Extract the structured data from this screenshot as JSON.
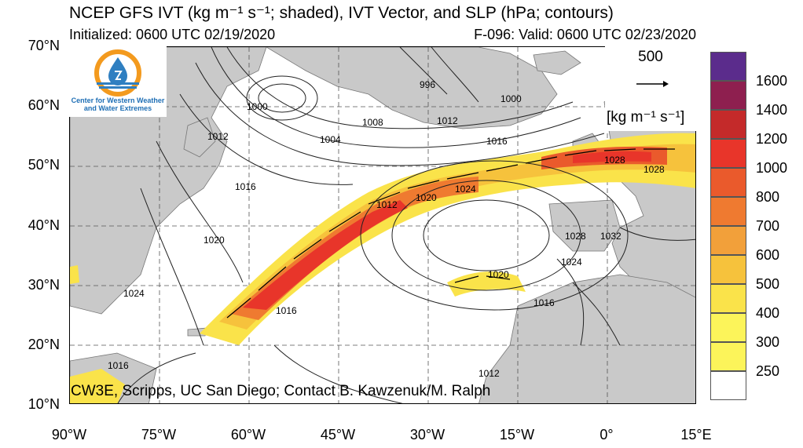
{
  "title": "NCEP GFS IVT (kg m⁻¹ s⁻¹; shaded), IVT Vector, and SLP (hPa; contours)",
  "initialized": "Initialized: 0600 UTC 02/19/2020",
  "valid": "F-096: Valid: 0600 UTC 02/23/2020",
  "lat_labels": [
    "70°N",
    "60°N",
    "50°N",
    "40°N",
    "30°N",
    "20°N",
    "10°N"
  ],
  "lon_labels": [
    "90°W",
    "75°W",
    "60°W",
    "45°W",
    "30°W",
    "15°W",
    "0°",
    "15°E"
  ],
  "logo_text_1": "Center for Western Weather",
  "logo_text_2": "and Water Extremes",
  "vector_ref_value": "500",
  "vector_ref_unit": "[kg m⁻¹ s⁻¹]",
  "credit": "CW3E, Scripps, UC San Diego; Contact B. Kawzenuk/M. Ralph",
  "contour_labels": [
    "996",
    "1000",
    "1000",
    "1004",
    "1008",
    "1012",
    "1012",
    "1016",
    "1016",
    "1016",
    "1020",
    "1024",
    "1028",
    "1032",
    "1020",
    "1024",
    "1016",
    "1016",
    "1012",
    "1024",
    "1028",
    "1020",
    "1028",
    "1012",
    "1016"
  ],
  "colorbar": {
    "labels": [
      "1600",
      "1400",
      "1200",
      "1000",
      "800",
      "700",
      "600",
      "500",
      "400",
      "300",
      "250"
    ],
    "colors": [
      "#5b2c8c",
      "#8e1f4f",
      "#c42a2a",
      "#e8352a",
      "#ea5a2c",
      "#ef7a30",
      "#f2a03a",
      "#f6c23c",
      "#fae34a",
      "#fcf45a",
      "#ffffff"
    ]
  }
}
